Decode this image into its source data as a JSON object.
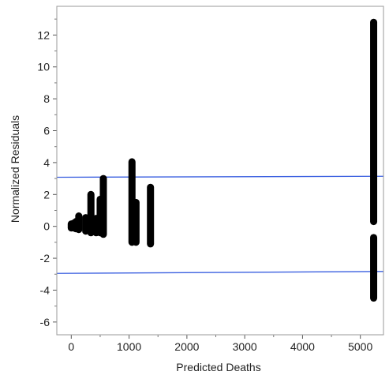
{
  "chart_data": {
    "type": "scatter",
    "title": "",
    "xlabel": "Predicted Deaths",
    "ylabel": "Normalized Residuals",
    "xlim": [
      -250,
      5400
    ],
    "ylim": [
      -6.8,
      13.8
    ],
    "xticks": [
      0,
      1000,
      2000,
      3000,
      4000,
      5000
    ],
    "xtick_labels": [
      "0",
      "1000",
      "2000",
      "3000",
      "4000",
      "5000"
    ],
    "yticks": [
      12,
      10,
      8,
      6,
      4,
      2,
      0,
      -2,
      -4,
      -6
    ],
    "ytick_labels": [
      "12",
      "10",
      "8",
      "6",
      "4",
      "2",
      "0",
      "-2",
      "-4",
      "-6"
    ],
    "grid": false,
    "point_color": "#000000",
    "reference_line_color": "#3a5fe0",
    "reference_lines": [
      {
        "x": [
          -250,
          5400
        ],
        "y": [
          3.08,
          3.14
        ]
      },
      {
        "x": [
          -250,
          5400
        ],
        "y": [
          -2.95,
          -2.83
        ]
      }
    ],
    "point_clusters": [
      {
        "x": 0,
        "y_min": -0.1,
        "y_max": 0.15
      },
      {
        "x": 40,
        "y_min": -0.1,
        "y_max": 0.2
      },
      {
        "x": 80,
        "y_min": -0.15,
        "y_max": 0.3
      },
      {
        "x": 130,
        "y_min": -0.2,
        "y_max": 0.65
      },
      {
        "x": 250,
        "y_min": -0.3,
        "y_max": 0.55
      },
      {
        "x": 340,
        "y_min": -0.4,
        "y_max": 2.0
      },
      {
        "x": 430,
        "y_min": -0.4,
        "y_max": 0.5
      },
      {
        "x": 500,
        "y_min": -0.4,
        "y_max": 1.7
      },
      {
        "x": 555,
        "y_min": -0.5,
        "y_max": 3.0
      },
      {
        "x": 1050,
        "y_min": -1.0,
        "y_max": 4.05
      },
      {
        "x": 1120,
        "y_min": -1.0,
        "y_max": 1.5
      },
      {
        "x": 1370,
        "y_min": -1.1,
        "y_max": 2.45
      },
      {
        "x": 5230,
        "y_min": 0.3,
        "y_max": 12.8
      },
      {
        "x": 5230,
        "y_min": -4.5,
        "y_max": -0.7
      }
    ]
  }
}
